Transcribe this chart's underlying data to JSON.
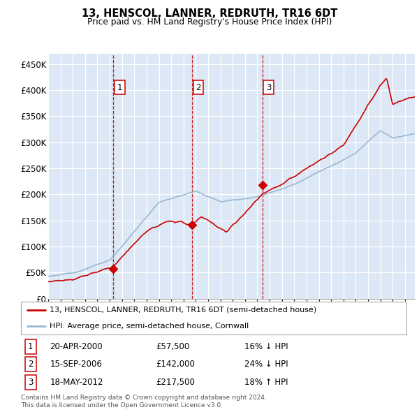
{
  "title": "13, HENSCOL, LANNER, REDRUTH, TR16 6DT",
  "subtitle": "Price paid vs. HM Land Registry's House Price Index (HPI)",
  "yticks": [
    0,
    50000,
    100000,
    150000,
    200000,
    250000,
    300000,
    350000,
    400000,
    450000
  ],
  "ytick_labels": [
    "£0",
    "£50K",
    "£100K",
    "£150K",
    "£200K",
    "£250K",
    "£300K",
    "£350K",
    "£400K",
    "£450K"
  ],
  "sale_year_nums": [
    2000.3,
    2006.7,
    2012.4
  ],
  "sale_prices": [
    57500,
    142000,
    217500
  ],
  "sale_labels": [
    "1",
    "2",
    "3"
  ],
  "sale_pct": [
    "16% ↓ HPI",
    "24% ↓ HPI",
    "18% ↑ HPI"
  ],
  "sale_date_labels": [
    "20-APR-2000",
    "15-SEP-2006",
    "18-MAY-2012"
  ],
  "legend_house_label": "13, HENSCOL, LANNER, REDRUTH, TR16 6DT (semi-detached house)",
  "legend_hpi_label": "HPI: Average price, semi-detached house, Cornwall",
  "house_line_color": "#cc0000",
  "hpi_line_color": "#99b8d4",
  "vline_color": "#cc0000",
  "footer_text": "Contains HM Land Registry data © Crown copyright and database right 2024.\nThis data is licensed under the Open Government Licence v3.0.",
  "grid_color": "#cccccc",
  "plot_bg_color": "#dce8f5",
  "ylim": [
    0,
    470000
  ],
  "xlim_start": 1995.0,
  "xlim_end": 2024.8
}
